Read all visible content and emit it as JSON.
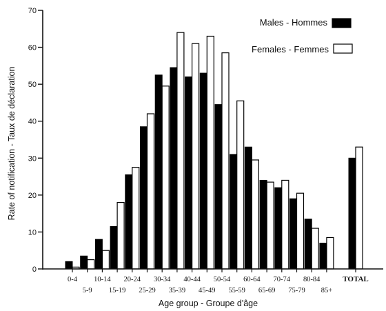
{
  "chart_data": {
    "type": "bar",
    "xlabel": "Age group - Groupe d'âge",
    "ylabel": "Rate of notification - Taux de déclaration",
    "ylim": [
      0,
      70
    ],
    "yticks": [
      0,
      10,
      20,
      30,
      40,
      50,
      60,
      70
    ],
    "ytick_labels": [
      "0",
      "10",
      "20",
      "30",
      "40",
      "50",
      "60",
      "70"
    ],
    "grid": false,
    "legend_position": "top-right",
    "categories": [
      "0-4",
      "5-9",
      "10-14",
      "15-19",
      "20-24",
      "25-29",
      "30-34",
      "35-39",
      "40-44",
      "45-49",
      "50-54",
      "55-59",
      "60-64",
      "65-69",
      "70-74",
      "75-79",
      "80-84",
      "85+",
      "TOTAL"
    ],
    "series": [
      {
        "name": "Males - Hommes",
        "color": "#000000",
        "values": [
          2,
          3.5,
          8,
          11.5,
          25.5,
          38.5,
          52.5,
          54.5,
          52,
          53,
          44.5,
          31,
          33,
          24,
          22,
          19,
          13.5,
          7,
          30
        ]
      },
      {
        "name": "Females - Femmes",
        "color": "#ffffff",
        "values": [
          0.5,
          2.5,
          5,
          18,
          27.5,
          42,
          49.5,
          64,
          61,
          63,
          58.5,
          45.5,
          29.5,
          23.5,
          24,
          20.5,
          11,
          8.5,
          33
        ]
      }
    ]
  }
}
